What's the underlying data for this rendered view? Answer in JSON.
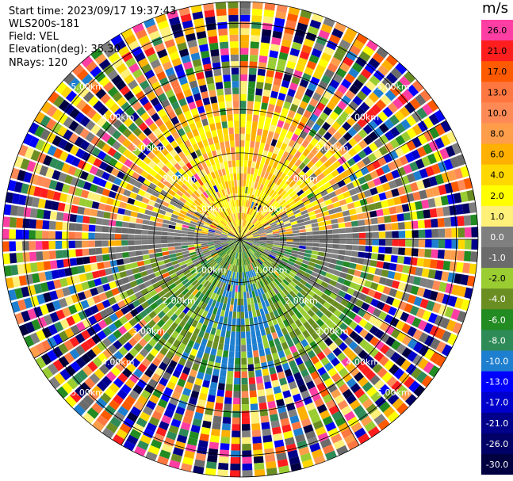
{
  "header": {
    "start_time": "Start time: 2023/09/17 19:37:43",
    "instrument": "WLS200s-181",
    "field": "Field: VEL",
    "elevation": "Elevation(deg): 35.30",
    "nrays": "NRays: 120"
  },
  "colorbar": {
    "title": "m/s",
    "ticks": [
      {
        "label": "26.0",
        "color": "#ff3ea3"
      },
      {
        "label": "21.0",
        "color": "#ff1e1e"
      },
      {
        "label": "17.0",
        "color": "#ff5a00"
      },
      {
        "label": "13.0",
        "color": "#ff7740"
      },
      {
        "label": "10.0",
        "color": "#ff8a56"
      },
      {
        "label": "8.0",
        "color": "#ff9e4a"
      },
      {
        "label": "6.0",
        "color": "#ffb000"
      },
      {
        "label": "4.0",
        "color": "#ffd800"
      },
      {
        "label": "2.0",
        "color": "#ffff00"
      },
      {
        "label": "1.0",
        "color": "#fff07a"
      },
      {
        "label": "0.0",
        "color": "#7f7f7f"
      },
      {
        "label": "-1.0",
        "color": "#6b6b6b"
      },
      {
        "label": "-2.0",
        "color": "#9acd32"
      },
      {
        "label": "-4.0",
        "color": "#6b8e23"
      },
      {
        "label": "-6.0",
        "color": "#228b22"
      },
      {
        "label": "-8.0",
        "color": "#2e8b57"
      },
      {
        "label": "-10.0",
        "color": "#1e7fd0"
      },
      {
        "label": "-13.0",
        "color": "#0000ff"
      },
      {
        "label": "-17.0",
        "color": "#0000cd"
      },
      {
        "label": "-21.0",
        "color": "#00008b"
      },
      {
        "label": "-26.0",
        "color": "#000066"
      },
      {
        "label": "-30.0",
        "color": "#000040"
      }
    ]
  },
  "chart_data": {
    "type": "heatmap",
    "projection": "polar PPI",
    "field": "VEL",
    "units": "m/s",
    "rays": 120,
    "range_rings_km": [
      1.0,
      2.0,
      3.0,
      4.0,
      5.0
    ],
    "range_ring_labels": [
      "1.00km",
      "2.00km",
      "3.00km",
      "4.00km",
      "5.00km"
    ],
    "azimuth_lines_deg": [
      0,
      30,
      60,
      90,
      120,
      150,
      180,
      210,
      240,
      270,
      300,
      330
    ],
    "approx_pattern": [
      {
        "sector": "north (upper half) inner",
        "range_km": [
          0,
          2.5
        ],
        "velocity_ms": [
          1,
          6
        ]
      },
      {
        "sector": "south (lower half) inner",
        "range_km": [
          0,
          2.5
        ],
        "velocity_ms": [
          -8,
          -1
        ]
      },
      {
        "sector": "east/west horizon",
        "range_km": [
          0,
          3.5
        ],
        "velocity_ms": [
          -1,
          0
        ]
      },
      {
        "sector": "outer rings",
        "range_km": [
          3.5,
          5.5
        ],
        "velocity_ms": "noise (all classes)"
      }
    ]
  }
}
